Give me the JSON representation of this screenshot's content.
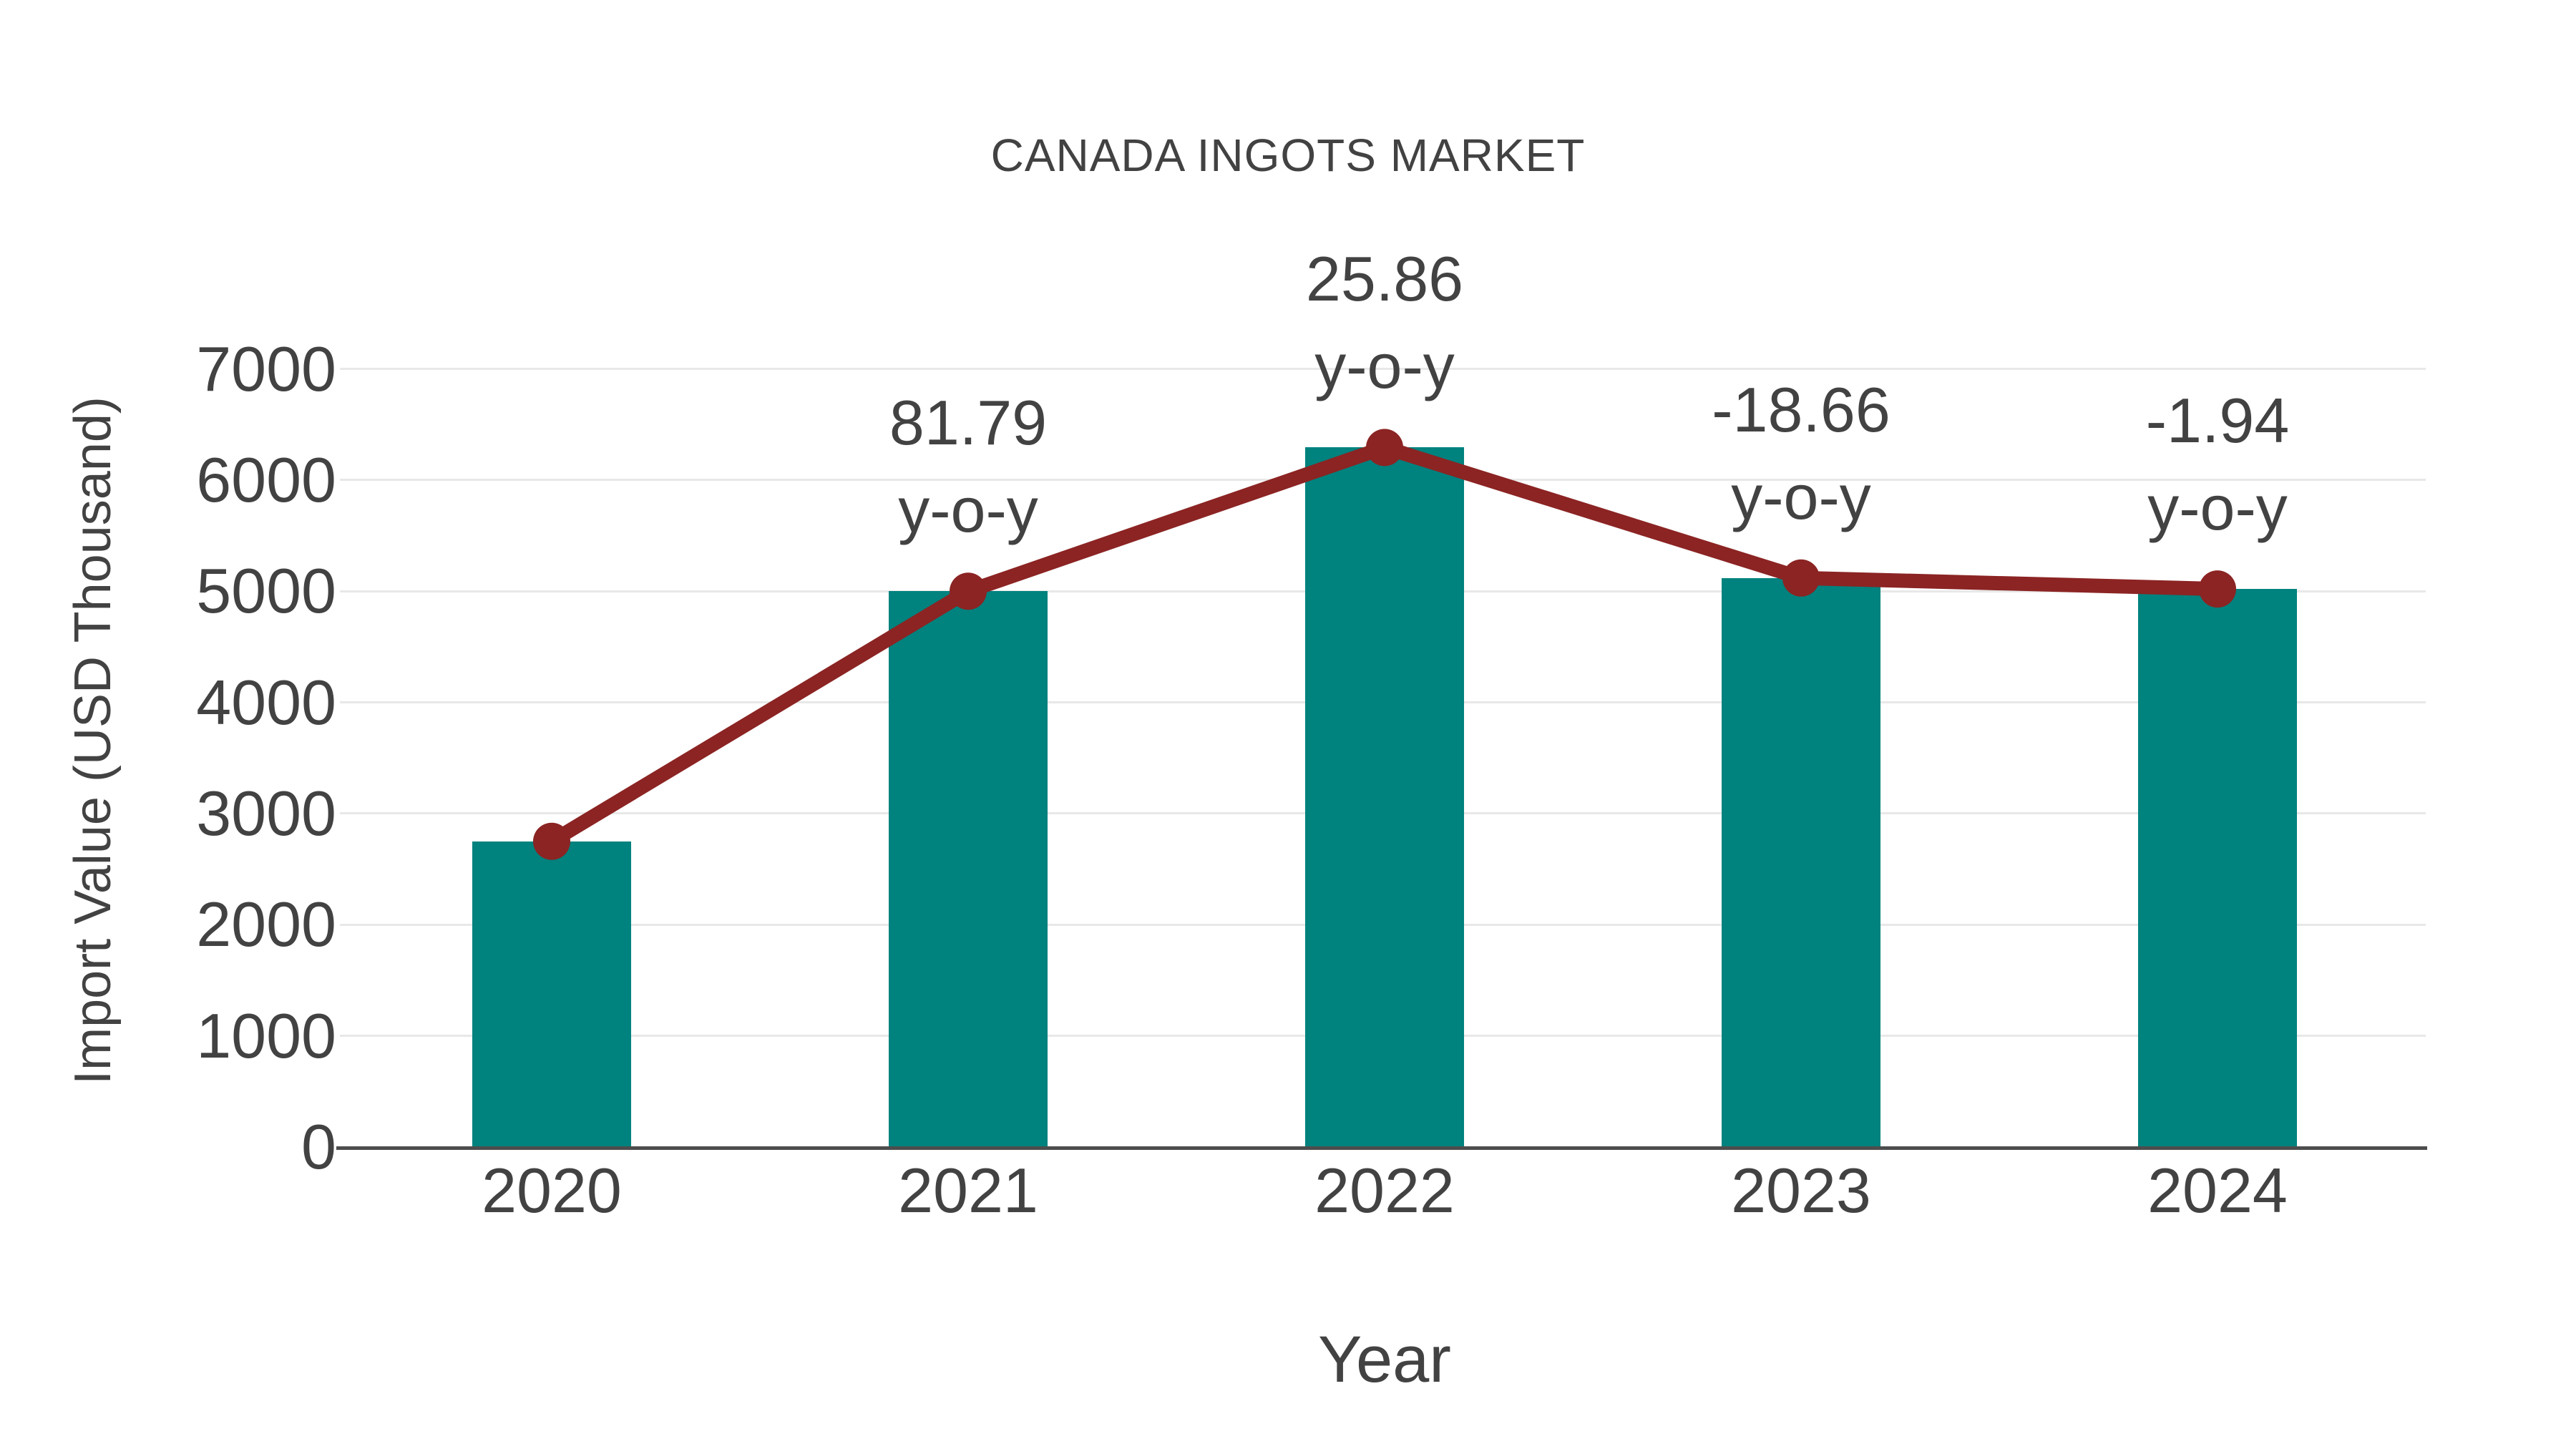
{
  "title": "CANADA INGOTS MARKET",
  "colors": {
    "bar": "#00827E",
    "line": "#8B2423",
    "text": "#424242",
    "grid": "#E8E8E8",
    "axis": "#4D4D4D"
  },
  "chart_data": {
    "type": "bar",
    "title": "CANADA INGOTS MARKET",
    "xlabel": "Year",
    "ylabel": "Import Value (USD Thousand)",
    "categories": [
      "2020",
      "2021",
      "2022",
      "2023",
      "2024"
    ],
    "series": [
      {
        "name": "Import Value (USD Thousand)",
        "type": "bar",
        "values": [
          2750,
          5000,
          6293,
          5119,
          5020
        ]
      },
      {
        "name": "Trend",
        "type": "line",
        "values": [
          2750,
          5000,
          6293,
          5119,
          5020
        ]
      }
    ],
    "annotations": [
      {
        "category": "2021",
        "value": "81.79",
        "suffix": "y-o-y"
      },
      {
        "category": "2022",
        "value": "25.86",
        "suffix": "y-o-y"
      },
      {
        "category": "2023",
        "value": "-18.66",
        "suffix": "y-o-y"
      },
      {
        "category": "2024",
        "value": "-1.94",
        "suffix": "y-o-y"
      }
    ],
    "ylim": [
      0,
      7000
    ],
    "ytick_step": 1000,
    "yticks": [
      0,
      1000,
      2000,
      3000,
      4000,
      5000,
      6000,
      7000
    ],
    "grid": true,
    "legend": false
  }
}
